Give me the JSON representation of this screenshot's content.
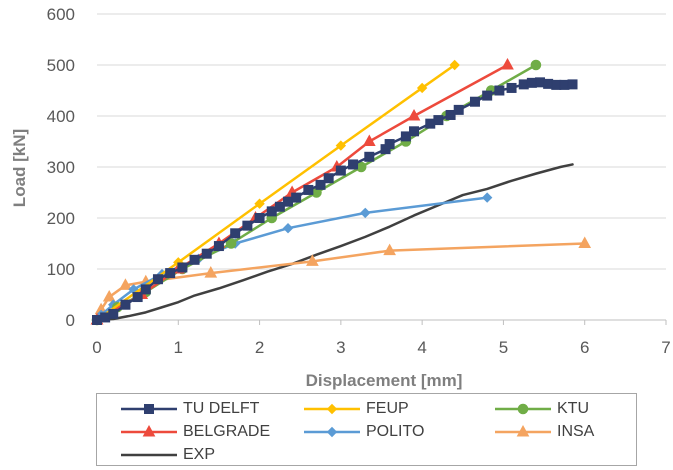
{
  "chart_data": {
    "type": "line",
    "xlabel": "Displacement [mm]",
    "ylabel": "Load [kN]",
    "xlim": [
      0,
      7
    ],
    "ylim": [
      0,
      600
    ],
    "x_ticks": [
      "0",
      "1",
      "2",
      "3",
      "4",
      "5",
      "6",
      "7"
    ],
    "y_ticks": [
      "0",
      "100",
      "200",
      "300",
      "400",
      "500",
      "600"
    ],
    "grid": "horizontal",
    "legend_position": "bottom",
    "series": [
      {
        "name": "TU DELFT",
        "color": "#2f3f6f",
        "marker": "square",
        "points": [
          [
            0,
            0
          ],
          [
            0.1,
            5
          ],
          [
            0.2,
            12
          ],
          [
            0.35,
            30
          ],
          [
            0.5,
            45
          ],
          [
            0.6,
            60
          ],
          [
            0.75,
            80
          ],
          [
            0.9,
            92
          ],
          [
            1.05,
            103
          ],
          [
            1.2,
            118
          ],
          [
            1.35,
            130
          ],
          [
            1.5,
            145
          ],
          [
            1.7,
            170
          ],
          [
            1.85,
            185
          ],
          [
            2.0,
            200
          ],
          [
            2.15,
            213
          ],
          [
            2.25,
            222
          ],
          [
            2.35,
            232
          ],
          [
            2.45,
            240
          ],
          [
            2.6,
            255
          ],
          [
            2.75,
            265
          ],
          [
            2.85,
            278
          ],
          [
            3.0,
            293
          ],
          [
            3.15,
            305
          ],
          [
            3.35,
            320
          ],
          [
            3.55,
            335
          ],
          [
            3.6,
            345
          ],
          [
            3.8,
            360
          ],
          [
            3.9,
            370
          ],
          [
            4.1,
            385
          ],
          [
            4.2,
            392
          ],
          [
            4.35,
            402
          ],
          [
            4.45,
            412
          ],
          [
            4.65,
            428
          ],
          [
            4.8,
            440
          ],
          [
            4.95,
            450
          ],
          [
            5.1,
            455
          ],
          [
            5.25,
            462
          ],
          [
            5.35,
            465
          ],
          [
            5.45,
            466
          ],
          [
            5.55,
            463
          ],
          [
            5.65,
            461
          ],
          [
            5.75,
            461
          ],
          [
            5.85,
            462
          ]
        ]
      },
      {
        "name": "FEUP",
        "color": "#ffc000",
        "marker": "diamond",
        "points": [
          [
            0,
            0
          ],
          [
            1.0,
            113
          ],
          [
            2.0,
            228
          ],
          [
            3.0,
            342
          ],
          [
            4.0,
            455
          ],
          [
            4.4,
            500
          ]
        ]
      },
      {
        "name": "KTU",
        "color": "#70ad47",
        "marker": "circle",
        "points": [
          [
            0,
            0
          ],
          [
            0.25,
            25
          ],
          [
            0.6,
            55
          ],
          [
            1.05,
            100
          ],
          [
            1.65,
            150
          ],
          [
            2.15,
            200
          ],
          [
            2.7,
            250
          ],
          [
            3.25,
            300
          ],
          [
            3.8,
            350
          ],
          [
            4.3,
            400
          ],
          [
            4.85,
            450
          ],
          [
            5.4,
            500
          ]
        ]
      },
      {
        "name": "BELGRADE",
        "color": "#ed4a3c",
        "marker": "triangle",
        "points": [
          [
            0,
            0
          ],
          [
            0.55,
            50
          ],
          [
            1.0,
            100
          ],
          [
            1.5,
            150
          ],
          [
            1.95,
            200
          ],
          [
            2.4,
            250
          ],
          [
            2.95,
            300
          ],
          [
            3.35,
            350
          ],
          [
            3.9,
            400
          ],
          [
            5.05,
            500
          ]
        ]
      },
      {
        "name": "POLITO",
        "color": "#5b9bd5",
        "marker": "diamond",
        "points": [
          [
            0,
            0
          ],
          [
            0.05,
            10
          ],
          [
            0.2,
            30
          ],
          [
            0.45,
            60
          ],
          [
            0.8,
            90
          ],
          [
            1.25,
            120
          ],
          [
            1.7,
            150
          ],
          [
            2.35,
            180
          ],
          [
            3.3,
            210
          ],
          [
            4.8,
            240
          ]
        ]
      },
      {
        "name": "INSA",
        "color": "#f4a460",
        "marker": "triangle",
        "points": [
          [
            0,
            0
          ],
          [
            0.05,
            20
          ],
          [
            0.15,
            45
          ],
          [
            0.35,
            68
          ],
          [
            0.6,
            75
          ],
          [
            1.4,
            92
          ],
          [
            2.65,
            115
          ],
          [
            3.6,
            136
          ],
          [
            6.0,
            150
          ]
        ]
      },
      {
        "name": "EXP",
        "color": "#404040",
        "marker": "none",
        "points": [
          [
            0,
            0
          ],
          [
            0.2,
            2
          ],
          [
            0.4,
            8
          ],
          [
            0.6,
            15
          ],
          [
            0.8,
            25
          ],
          [
            1.0,
            35
          ],
          [
            1.2,
            48
          ],
          [
            1.5,
            62
          ],
          [
            1.8,
            78
          ],
          [
            2.1,
            95
          ],
          [
            2.4,
            110
          ],
          [
            2.7,
            128
          ],
          [
            3.0,
            145
          ],
          [
            3.3,
            163
          ],
          [
            3.6,
            183
          ],
          [
            3.9,
            205
          ],
          [
            4.2,
            225
          ],
          [
            4.5,
            245
          ],
          [
            4.8,
            257
          ],
          [
            5.1,
            273
          ],
          [
            5.4,
            287
          ],
          [
            5.7,
            300
          ],
          [
            5.85,
            305
          ]
        ]
      }
    ]
  }
}
